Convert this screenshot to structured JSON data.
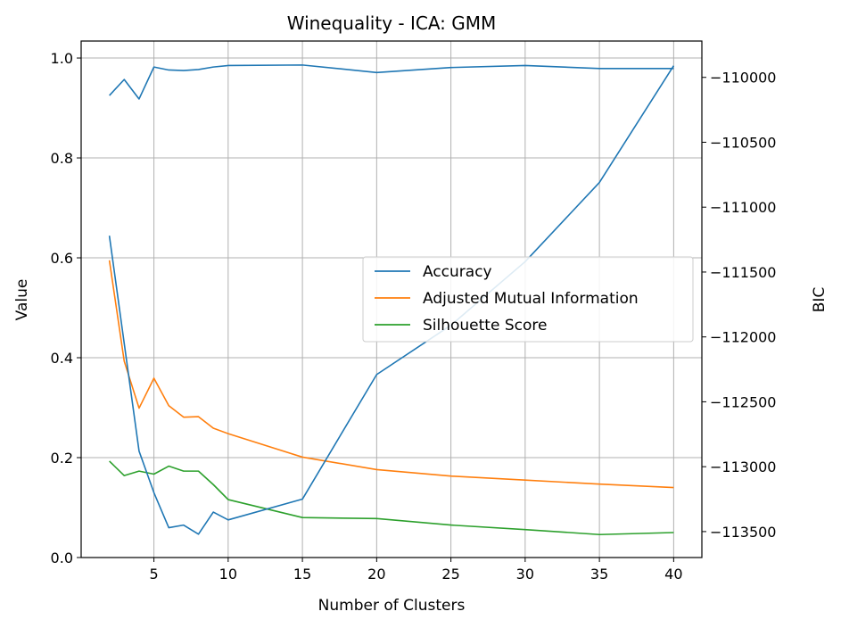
{
  "chart_data": {
    "type": "line",
    "title": "Winequality - ICA: GMM",
    "xlabel": "Number of Clusters",
    "ylabel": "Value",
    "y2label": "BIC",
    "xlim": [
      0.1,
      41.9
    ],
    "ylim": [
      0,
      1.034
    ],
    "y2lim": [
      -113700,
      -109720
    ],
    "xticks": [
      5,
      10,
      15,
      20,
      25,
      30,
      35,
      40
    ],
    "yticks": [
      0.0,
      0.2,
      0.4,
      0.6,
      0.8,
      1.0
    ],
    "y2ticks": [
      -110000,
      -110500,
      -111000,
      -111500,
      -112000,
      -112500,
      -113000,
      -113500
    ],
    "grid": true,
    "legend_position": "center-right",
    "series": [
      {
        "name": "Accuracy",
        "color": "#1f77b4",
        "axis": "left",
        "x": [
          2,
          3,
          4,
          5,
          6,
          7,
          8,
          9,
          10,
          15,
          20,
          25,
          30,
          35,
          40
        ],
        "values": [
          0.925,
          0.957,
          0.918,
          0.982,
          0.976,
          0.975,
          0.977,
          0.982,
          0.985,
          0.986,
          0.971,
          0.981,
          0.985,
          0.979,
          0.979
        ]
      },
      {
        "name": "Adjusted Mutual Information",
        "color": "#ff7f0e",
        "axis": "left",
        "x": [
          2,
          3,
          4,
          5,
          6,
          7,
          8,
          9,
          10,
          15,
          20,
          25,
          30,
          35,
          40
        ],
        "values": [
          0.595,
          0.393,
          0.299,
          0.359,
          0.304,
          0.281,
          0.282,
          0.259,
          0.248,
          0.201,
          0.176,
          0.163,
          0.155,
          0.147,
          0.14
        ]
      },
      {
        "name": "Silhouette Score",
        "color": "#2ca02c",
        "axis": "left",
        "x": [
          2,
          3,
          4,
          5,
          6,
          7,
          8,
          9,
          10,
          15,
          20,
          25,
          30,
          35,
          40
        ],
        "values": [
          0.193,
          0.164,
          0.173,
          0.167,
          0.183,
          0.173,
          0.173,
          0.146,
          0.116,
          0.08,
          0.078,
          0.065,
          0.056,
          0.046,
          0.05
        ]
      },
      {
        "name": "BIC",
        "color": "#1f77b4",
        "axis": "right",
        "x": [
          2,
          3,
          4,
          5,
          6,
          7,
          8,
          9,
          10,
          15,
          20,
          25,
          30,
          35,
          40
        ],
        "values": [
          -111220,
          -112050,
          -112880,
          -113200,
          -113470,
          -113450,
          -113520,
          -113350,
          -113410,
          -113250,
          -112290,
          -111910,
          -111420,
          -110810,
          -109910
        ]
      }
    ]
  }
}
